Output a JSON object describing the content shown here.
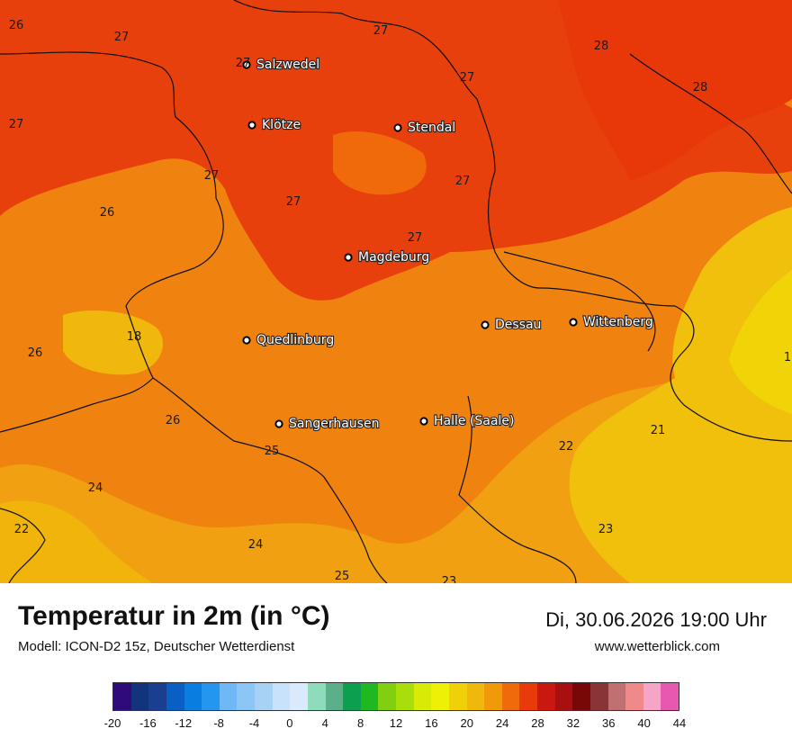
{
  "title": "Temperatur in 2m (in °C)",
  "model": "Modell: ICON-D2 15z, Deutscher Wetterdienst",
  "datetime": "Di, 30.06.2026 19:00 Uhr",
  "website": "www.wetterblick.com",
  "cities": [
    {
      "name": "Salzwedel"
    },
    {
      "name": "Klötze"
    },
    {
      "name": "Stendal"
    },
    {
      "name": "Magdeburg"
    },
    {
      "name": "Quedlinburg"
    },
    {
      "name": "Dessau"
    },
    {
      "name": "Wittenberg"
    },
    {
      "name": "Sangerhausen"
    },
    {
      "name": "Halle (Saale)"
    }
  ],
  "temperature_labels": [
    "26",
    "27",
    "27",
    "27",
    "28",
    "27",
    "27",
    "27",
    "28",
    "26",
    "27",
    "27",
    "27",
    "18",
    "26",
    "26",
    "25",
    "24",
    "22",
    "24",
    "25",
    "23",
    "22",
    "21",
    "23",
    "1"
  ],
  "colorbar": {
    "colors": [
      "#2e0a7a",
      "#12347d",
      "#1a3f8f",
      "#0a5fc4",
      "#0a7de0",
      "#2496f0",
      "#70b8f5",
      "#8cc6f5",
      "#a8d2f5",
      "#c8e2fb",
      "#d8eafb",
      "#8fdcbc",
      "#5bb089",
      "#0aa050",
      "#20b820",
      "#82cf10",
      "#a8de0a",
      "#d8ea05",
      "#eef005",
      "#f0d008",
      "#f0b80a",
      "#f09a0a",
      "#f06a0c",
      "#e83a0a",
      "#c81810",
      "#a80f10",
      "#780808",
      "#8a3535",
      "#c07070",
      "#f08a8a",
      "#f5a5c8",
      "#e858b0"
    ],
    "tick_labels": [
      "-20",
      "-16",
      "-12",
      "-8",
      "-4",
      "0",
      "4",
      "8",
      "12",
      "16",
      "20",
      "24",
      "28",
      "32",
      "36",
      "40",
      "44"
    ]
  }
}
